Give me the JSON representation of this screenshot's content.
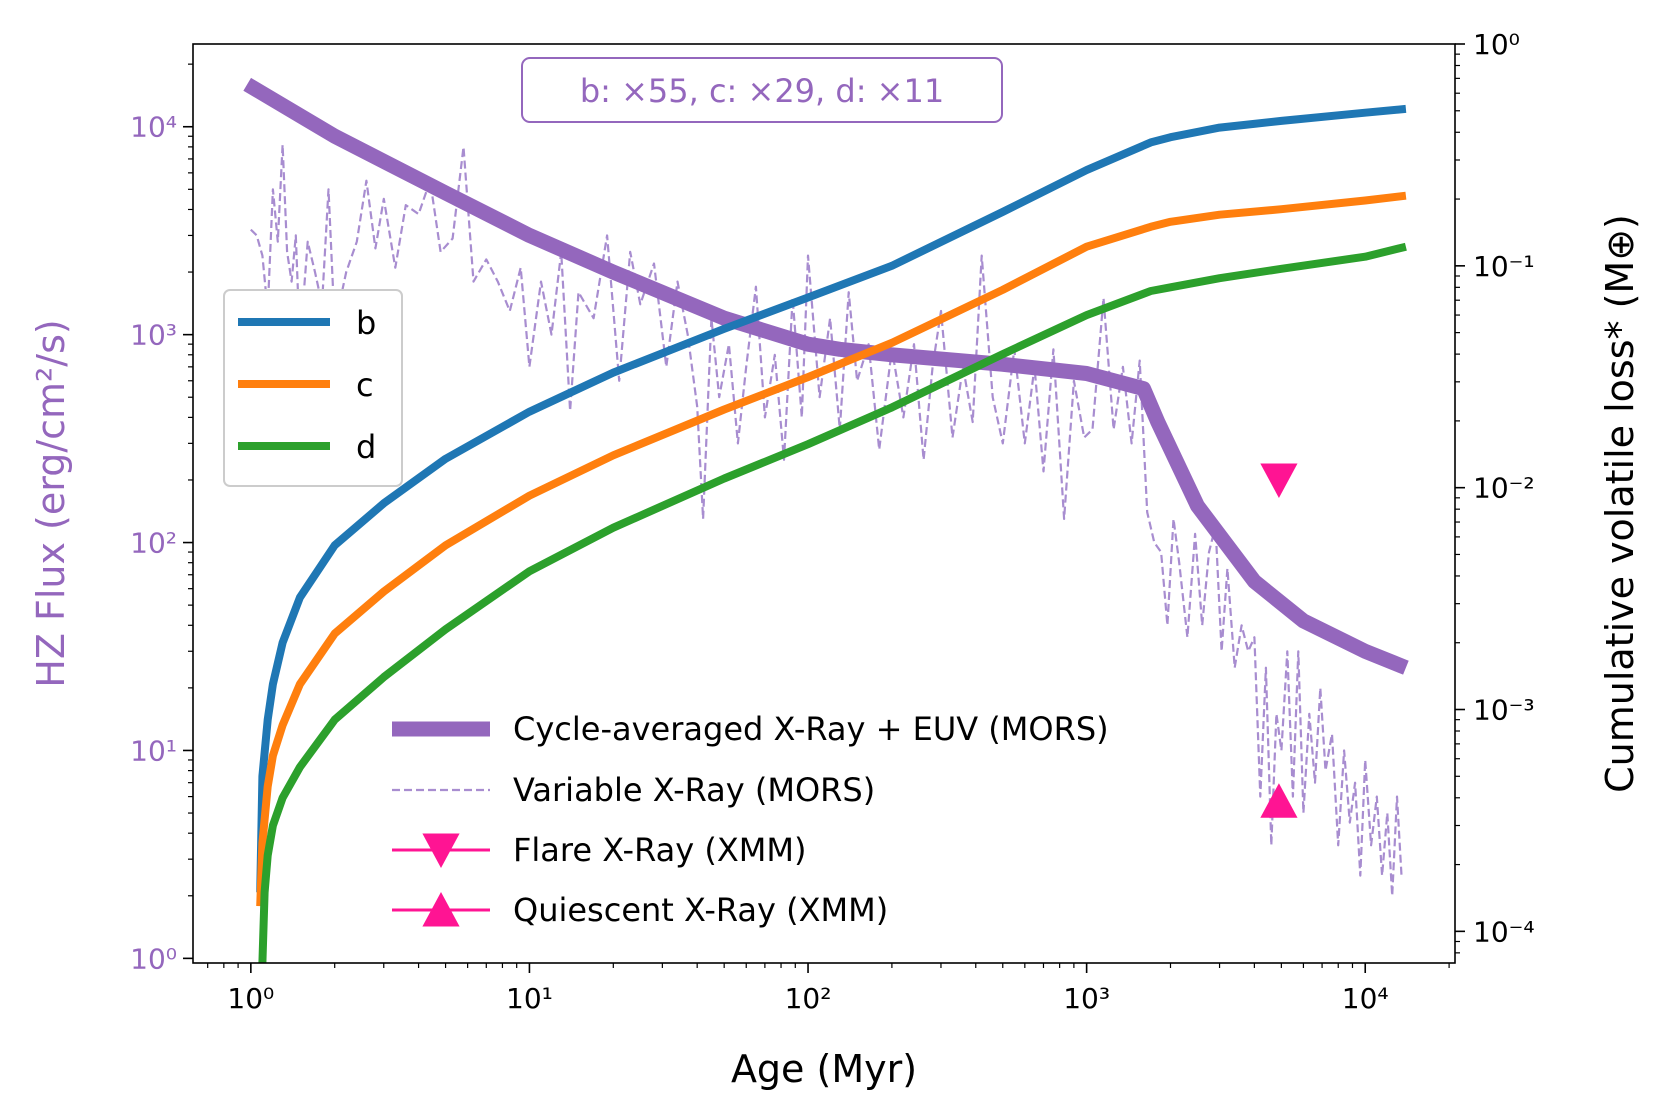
{
  "chart_data": {
    "type": "line",
    "xlabel": "Age (Myr)",
    "ylabel_left": "HZ Flux (erg/cm²/s)",
    "ylabel_right": "Cumulative volatile loss* (M⊕)",
    "xscale": "log",
    "xlim": [
      0.62,
      21000
    ],
    "ylim_left": [
      0.95,
      25000
    ],
    "ylim_right": [
      7.2e-05,
      1.0
    ],
    "x_tick_labels": [
      "10⁰",
      "10¹",
      "10²",
      "10³",
      "10⁴"
    ],
    "y_left_tick_labels": [
      "10⁰",
      "10¹",
      "10²",
      "10³",
      "10⁴"
    ],
    "y_right_tick_labels": [
      "10⁻⁴",
      "10⁻³",
      "10⁻²",
      "10⁻¹",
      "10⁰"
    ],
    "annotation": "b: ×55, c: ×29, d: ×11",
    "colors": {
      "left_axis": "#9467bd",
      "b": "#1f77b4",
      "c": "#ff7f0e",
      "d": "#2ca02c",
      "mors": "#9467bd",
      "variable": "#a88dd0",
      "xmm": "#ff1493"
    },
    "planet_legend": [
      "b",
      "c",
      "d"
    ],
    "flux_legend": [
      "Cycle-averaged X-Ray + EUV (MORS)",
      "Variable X-Ray (MORS)",
      "Flare X-Ray (XMM)",
      "Quiescent X-Ray (XMM)"
    ],
    "series": [
      {
        "name": "b",
        "axis": "right",
        "x": [
          1.08,
          1.1,
          1.15,
          1.2,
          1.3,
          1.5,
          2,
          3,
          5,
          10,
          20,
          50,
          100,
          200,
          500,
          1000,
          1700,
          2000,
          3000,
          5000,
          10000,
          14000
        ],
        "values": [
          0.00015,
          0.0005,
          0.0009,
          0.0013,
          0.002,
          0.0032,
          0.0055,
          0.0085,
          0.0135,
          0.022,
          0.033,
          0.052,
          0.072,
          0.1,
          0.175,
          0.27,
          0.36,
          0.38,
          0.42,
          0.45,
          0.49,
          0.51
        ]
      },
      {
        "name": "c",
        "axis": "right",
        "x": [
          1.08,
          1.1,
          1.15,
          1.2,
          1.3,
          1.5,
          2,
          3,
          5,
          10,
          20,
          50,
          100,
          200,
          500,
          1000,
          1700,
          2000,
          3000,
          5000,
          10000,
          14000
        ],
        "values": [
          0.00013,
          0.00025,
          0.00045,
          0.00062,
          0.00085,
          0.0013,
          0.0022,
          0.0034,
          0.0055,
          0.0092,
          0.014,
          0.0225,
          0.0315,
          0.045,
          0.078,
          0.122,
          0.15,
          0.158,
          0.17,
          0.18,
          0.197,
          0.207
        ]
      },
      {
        "name": "d",
        "axis": "right",
        "x": [
          1.1,
          1.12,
          1.15,
          1.2,
          1.3,
          1.5,
          2,
          3,
          5,
          10,
          20,
          50,
          100,
          200,
          500,
          1000,
          1700,
          2000,
          3000,
          5000,
          10000,
          14000
        ],
        "values": [
          7.2e-05,
          0.00015,
          0.00022,
          0.0003,
          0.0004,
          0.00055,
          0.0009,
          0.0014,
          0.0023,
          0.0042,
          0.0066,
          0.011,
          0.0157,
          0.023,
          0.04,
          0.06,
          0.077,
          0.08,
          0.088,
          0.097,
          0.11,
          0.122
        ]
      },
      {
        "name": "Cycle-averaged X-Ray + EUV (MORS)",
        "axis": "left",
        "x": [
          0.97,
          2,
          5,
          10,
          20,
          50,
          100,
          130,
          200,
          500,
          1000,
          1600,
          1800,
          2500,
          4000,
          6000,
          10000,
          14000
        ],
        "values": [
          16000,
          9000,
          4800,
          3000,
          2000,
          1200,
          900,
          850,
          800,
          720,
          650,
          550,
          380,
          150,
          65,
          42,
          30,
          25
        ]
      },
      {
        "name": "Variable X-Ray (MORS)",
        "axis": "left",
        "x": [
          1.0,
          1.05,
          1.1,
          1.15,
          1.2,
          1.25,
          1.3,
          1.35,
          1.4,
          1.45,
          1.5,
          1.6,
          1.7,
          1.8,
          1.9,
          2.0,
          2.2,
          2.4,
          2.6,
          2.8,
          3.0,
          3.3,
          3.6,
          4.0,
          4.4,
          4.8,
          5.3,
          5.8,
          6.3,
          7.0,
          7.7,
          8.5,
          9.3,
          10,
          11,
          12,
          13,
          14,
          15,
          17,
          19,
          21,
          23,
          25,
          28,
          31,
          34,
          37,
          40,
          42,
          45,
          48,
          52,
          56,
          60,
          65,
          70,
          76,
          82,
          88,
          95,
          100,
          110,
          120,
          130,
          140,
          150,
          165,
          180,
          200,
          220,
          240,
          260,
          280,
          300,
          330,
          360,
          390,
          420,
          460,
          500,
          550,
          600,
          650,
          700,
          760,
          830,
          900,
          980,
          1050,
          1150,
          1250,
          1350,
          1450,
          1550,
          1650,
          1750,
          1850,
          1950,
          2050,
          2150,
          2300,
          2450,
          2600,
          2750,
          2900,
          3050,
          3200,
          3400,
          3600,
          3800,
          4000,
          4200,
          4400,
          4600,
          4800,
          5000,
          5250,
          5500,
          5750,
          6000,
          6300,
          6600,
          6900,
          7200,
          7600,
          8000,
          8400,
          8800,
          9200,
          9600,
          10000,
          10500,
          11000,
          11500,
          12000,
          12500,
          13000,
          13500
        ],
        "values": [
          3200,
          3000,
          2400,
          1300,
          5000,
          2800,
          8200,
          2500,
          1800,
          3000,
          900,
          2800,
          2000,
          1400,
          5000,
          1100,
          2000,
          2800,
          5500,
          2600,
          4500,
          2100,
          4200,
          3800,
          5500,
          2500,
          2900,
          8000,
          1800,
          2300,
          1800,
          1300,
          2100,
          700,
          1800,
          1000,
          2500,
          430,
          1600,
          1200,
          3000,
          600,
          2500,
          1400,
          2200,
          700,
          1800,
          1000,
          450,
          130,
          1200,
          500,
          900,
          300,
          700,
          1700,
          400,
          800,
          250,
          1500,
          400,
          2400,
          500,
          1200,
          350,
          1600,
          600,
          900,
          280,
          850,
          400,
          900,
          250,
          700,
          1300,
          320,
          700,
          380,
          2400,
          500,
          300,
          850,
          300,
          700,
          220,
          850,
          130,
          600,
          320,
          350,
          1500,
          350,
          700,
          300,
          750,
          140,
          100,
          90,
          40,
          130,
          80,
          35,
          110,
          40,
          90,
          120,
          30,
          75,
          25,
          40,
          30,
          35,
          6,
          25,
          3.5,
          15,
          10,
          30,
          6,
          30,
          5,
          15,
          7,
          20,
          8,
          12,
          3.5,
          10,
          4.5,
          7,
          2.5,
          9,
          3.5,
          6,
          2.5,
          5,
          2,
          6,
          2.5
        ]
      },
      {
        "name": "Flare X-Ray (XMM)",
        "axis": "left",
        "marker": "triangle-down",
        "x": [
          4900
        ],
        "values": [
          200
        ]
      },
      {
        "name": "Quiescent X-Ray (XMM)",
        "axis": "left",
        "marker": "triangle-up",
        "x": [
          4900
        ],
        "values": [
          5.7
        ]
      }
    ]
  }
}
